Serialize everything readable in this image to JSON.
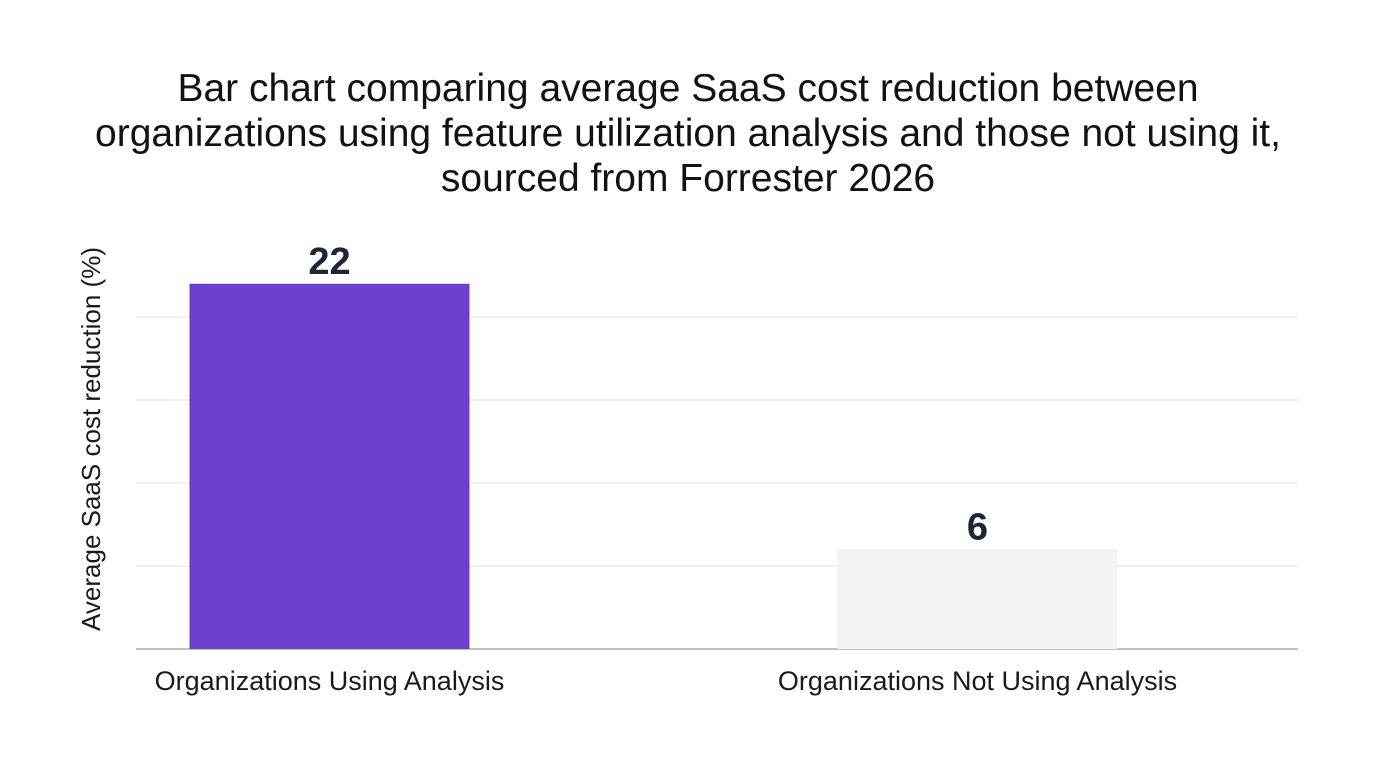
{
  "chart_data": {
    "type": "bar",
    "title": "Bar chart comparing average SaaS cost reduction between organizations using feature utilization analysis and those not using it, sourced from Forrester 2026",
    "xlabel": "",
    "ylabel": "Average SaaS cost reduction (%)",
    "categories": [
      "Organizations Using Analysis",
      "Organizations Not Using Analysis"
    ],
    "values": [
      22,
      6
    ],
    "data_labels": [
      "22",
      "6"
    ],
    "colors": [
      "#6b40cc",
      "#f3f3f3"
    ],
    "ylim": [
      0,
      20
    ],
    "gridlines": [
      0,
      5,
      10,
      15,
      20
    ],
    "grid": true,
    "legend": "none"
  }
}
